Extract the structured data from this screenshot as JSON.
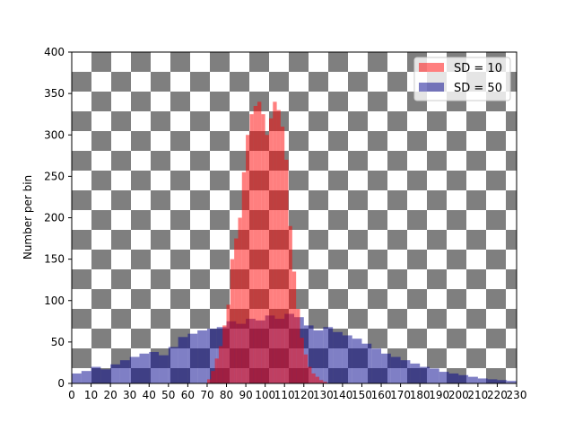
{
  "chart_data": {
    "type": "bar",
    "title": "",
    "xlabel": "",
    "ylabel": "Number per bin",
    "xlim": [
      0,
      230
    ],
    "ylim": [
      0,
      400
    ],
    "xticks": [
      0,
      10,
      20,
      30,
      40,
      50,
      60,
      70,
      80,
      90,
      100,
      110,
      120,
      130,
      140,
      150,
      160,
      170,
      180,
      190,
      200,
      210,
      220,
      230
    ],
    "yticks": [
      0,
      50,
      100,
      150,
      200,
      250,
      300,
      350,
      400
    ],
    "background": "checkerboard",
    "legend_position": "top-right",
    "series": [
      {
        "name": "SD = 50",
        "color": "#00008b",
        "alpha": 0.5,
        "bin_width": 5,
        "x": [
          0,
          5,
          10,
          15,
          20,
          25,
          30,
          35,
          40,
          45,
          50,
          55,
          60,
          65,
          70,
          75,
          80,
          85,
          90,
          95,
          100,
          105,
          110,
          115,
          120,
          125,
          130,
          135,
          140,
          145,
          150,
          155,
          160,
          165,
          170,
          175,
          180,
          185,
          190,
          195,
          200,
          205,
          210,
          215,
          220,
          225
        ],
        "values": [
          12,
          15,
          20,
          17,
          23,
          28,
          32,
          36,
          38,
          34,
          44,
          56,
          60,
          64,
          66,
          68,
          75,
          72,
          78,
          76,
          82,
          78,
          84,
          80,
          70,
          64,
          68,
          62,
          58,
          54,
          48,
          42,
          36,
          32,
          28,
          24,
          20,
          18,
          14,
          12,
          10,
          8,
          6,
          5,
          4,
          3
        ]
      },
      {
        "name": "SD = 10",
        "color": "#ff0000",
        "alpha": 0.5,
        "bin_width": 2,
        "x": [
          70,
          72,
          74,
          76,
          78,
          80,
          82,
          84,
          86,
          88,
          90,
          92,
          94,
          96,
          98,
          100,
          102,
          104,
          106,
          108,
          110,
          112,
          114,
          116,
          118,
          120,
          122,
          124,
          126,
          128,
          130
        ],
        "values": [
          5,
          15,
          30,
          45,
          70,
          95,
          150,
          175,
          200,
          255,
          300,
          325,
          335,
          340,
          325,
          300,
          320,
          340,
          330,
          310,
          270,
          190,
          135,
          90,
          55,
          35,
          20,
          12,
          8,
          4,
          2
        ]
      }
    ]
  }
}
